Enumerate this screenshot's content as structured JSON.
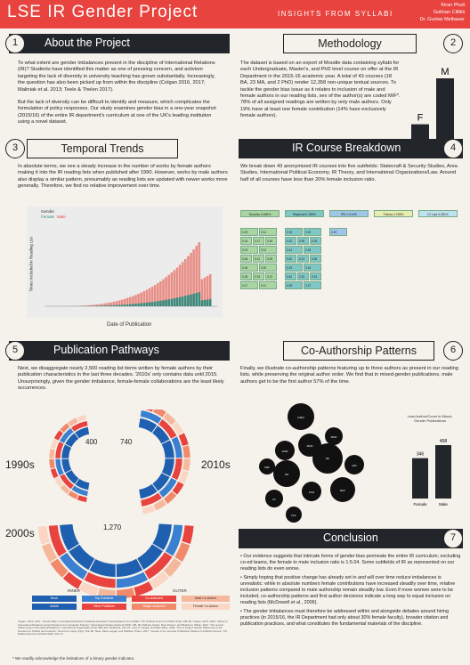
{
  "header": {
    "title": "LSE IR Gender Project",
    "subtitle": "INSIGHTS FROM SYLLABI",
    "authors": [
      "Kiran Phull",
      "Gokhan Ciflikli",
      "Dr. Gustav Meibauer"
    ]
  },
  "sections": {
    "s1": {
      "num": "1",
      "title": "About the Project"
    },
    "s2": {
      "num": "2",
      "title": "Methodology"
    },
    "s3": {
      "num": "3",
      "title": "Temporal Trends"
    },
    "s4": {
      "num": "4",
      "title": "IR Course Breakdown"
    },
    "s5": {
      "num": "5",
      "title": "Publication Pathways"
    },
    "s6": {
      "num": "6",
      "title": "Co-Authorship Patterns"
    },
    "s7": {
      "num": "7",
      "title": "Conclusion"
    }
  },
  "about": {
    "p1": "To what extent are gender imbalances present in the discipline of International Relations (IR)? Students have identified this matter as one of pressing concern, and activism targeting the lack of diversity in university teaching has grown substantially. Increasingly, the question has also been picked up from within the discipline (Colgan 2016, 2017; Maliniak et al. 2013; Teele & Thelen 2017).",
    "p2": "But the lack of diversity can be difficult to identify and measure, which complicates the formulation of policy responses. Our study examines gender bias in a one-year snapshot (2015/16) of the entire IR department's curriculum at one of the UK's leading institution using a novel dataset."
  },
  "methodology": {
    "text": "The dataset is based on an export of Moodle data containing syllabi for each Undergraduate, Master's, and PhD level course on offer at the IR Department in the 2015-16 academic year. A total of 43 courses (18 BA, 23 MA, and 2 PhD) render 12,358 non-unique textual sources. To tackle the gender bias issue as it relates to inclusion of male and female authors in our reading lists, sex of the author(s) are coded M/F*. 78% of all assigned readings are written by only male authors. Only 19% have at least one female contribution (14% have exclusively female authors).",
    "f_label": "F",
    "m_label": "M",
    "f_value": 2574,
    "m_value": 9784,
    "f_text": "2,574",
    "m_text": "9,784"
  },
  "temporal": {
    "text": "In absolute terms, we see a steady increase in the number of works by female authors making it into the IR reading lists when published after 1990. However, works by male authors also display a similar pattern, presumably as reading lists are updated with newer works more generally. Therefore, we find no relative improvement over time.",
    "legend_title": "Gender",
    "legend": [
      "Female",
      "Male"
    ],
    "ylabel": "Times Included in Reading List",
    "xlabel": "Date of Publication"
  },
  "breakdown": {
    "text": "We break down 43 anonymized IR courses into five subfields: Statecraft & Security Studies, Area Studies, International Political Economy, IR Theory, and International Organizations/Law. Around half of all courses have less than 20% female inclusion ratio.",
    "categories": [
      {
        "label": "Security 0.185%",
        "color": "#a8d5a2"
      },
      {
        "label": "Regional 0.185%",
        "color": "#7fc7c4"
      },
      {
        "label": "IPE 0.214%",
        "color": "#9ec6e6"
      },
      {
        "label": "Theory 0.235%",
        "color": "#e8edb0"
      },
      {
        "label": "IO Law 0.281%",
        "color": "#bfe2ef"
      }
    ],
    "cells": [
      "0.19",
      "0.11",
      "0.14",
      "0.17",
      "0.16",
      "0.13",
      "0.12",
      "0.18",
      "0.12",
      "0.09",
      "0.16",
      "0.20",
      "0.28",
      "0.24",
      "0.22",
      "0.17",
      "0.21",
      "0.15",
      "0.19",
      "0.22",
      "0.30",
      "0.25",
      "0.14",
      "0.18",
      "0.40",
      "0.21",
      "0.26",
      "0.19",
      "0.16",
      "0.42",
      "0.32",
      "0.34",
      "0.25",
      "0.27",
      "0.19"
    ]
  },
  "pathways": {
    "text": "Next, we disaggregate nearly 2,500 reading list items written by female authors by their publication characteristics in the last three decades. '2010s' only contains data until 2015. Unsurprisingly, given the gender imbalance, female-female collaborations are the least likely occurrences.",
    "decades": [
      {
        "label": "1990s",
        "total": "400"
      },
      {
        "label": "2010s",
        "total": "740"
      },
      {
        "label": "2000s",
        "total": "1,270"
      }
    ],
    "legend_inner": "INNER",
    "legend_outer": "OUTER",
    "inner": [
      "Book",
      "Article"
    ],
    "mid": [
      "Top Publisher",
      "Other Publisher"
    ],
    "outer": [
      "Co-Authored",
      "Single-Authored",
      "Male Co-Author",
      "Female Co-Author"
    ]
  },
  "coauth": {
    "text": "Finally, we illustrate co-authorship patterns featuring up to three authors as present in our reading lists, while preserving the original author order. We find that in mixed-gender publications, male authors get to be the first author 57% of the time.",
    "bar_title": "Lead Author/Count in Mixed-Gender Publications",
    "bars": [
      {
        "label": "Female",
        "value": 346,
        "text": "346"
      },
      {
        "label": "Male",
        "value": 458,
        "text": "458"
      }
    ],
    "bubbles": [
      "MMM",
      "MMF",
      "MFM",
      "FMM",
      "MF",
      "FM",
      "FMF",
      "FFM",
      "MFF",
      "FF",
      "FFF",
      "MM"
    ]
  },
  "conclusion": {
    "items": [
      "• Our evidence suggests that intricate forms of gender bias permeate the entire IR curriculum; excluding co-ed teams, the female to male inclusion ratio is 1:5.04. Some subfields of IR as represented on our reading lists do even worse.",
      "• Simply hoping that positive change has already set in and will over time reduce imbalances is unrealistic: while in absolute numbers female contributions have increased steadily over time, relative inclusion patterns compared to male authorship remain steadily low. Even if more women were to be included, co-authorship patterns and first author decisions indicate a long way to equal inclusion on reading lists (McDowell et al., 2006).",
      "• The gender imbalances must therefore be addressed within and alongside debates around hiring practices (in 2015/16, the IR Department had only about 30% female faculty), broader citation and publication practices, and what constitutes the fundamental materials of the discipline."
    ]
  },
  "refs": "Colgan, Jeff D. 2017. \"Gender Bias in International Relations Graduate Education? New Evidence from Syllabi.\" PS: Political Science & Politics 50(2): 456–60. Colgan, Jeff D. 2016. \"Where Is International Relations Going? Evidence from Graduate Training.\" International Studies Quarterly 60(3): 486–98. Maliniak, Daniel, Ryan Powers, and Barbara F. Walter. 2013. \"The Gender Citation Gap in International Relations.\" International Organization 67(4): 889–922. McDowell, John M., Larry D. Singell, and Mark Stater. 2006. \"Two to Tango? Gender Differences in the Decisions to Publish and Coauthor.\" Economic Inquiry 44(1): 153–68. Teele, Dawn Langan, and Kathleen Thelen. 2017. \"Gender in the Journals: Publication Patterns in Political Science.\" PS: Political Science & Politics 50(2): 433–47.",
  "footnote": "* We readily acknowledge the limitations of a binary gender indicator."
}
